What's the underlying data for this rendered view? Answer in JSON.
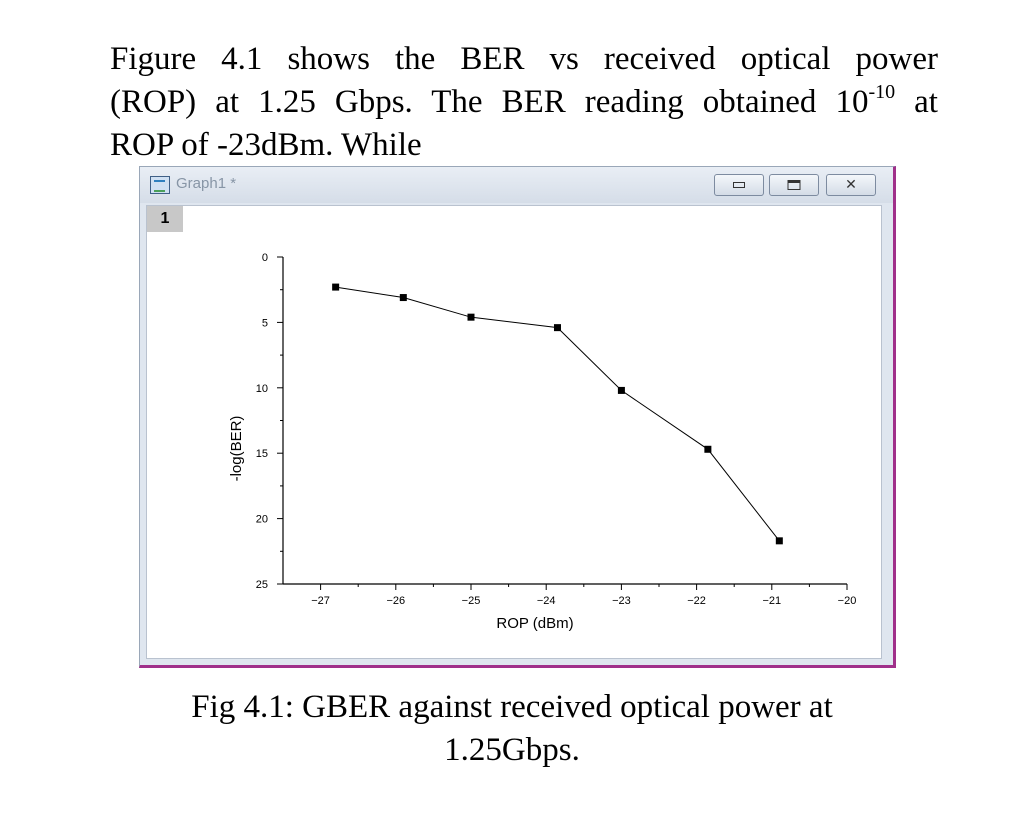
{
  "paragraph": {
    "line1": "Figure 4.1 shows the BER vs received optical power",
    "line2_text": "(ROP) at 1.25 Gbps. The BER reading obtained 10",
    "line2_sup": "-10",
    "line2_end": " at",
    "line3": "ROP of -23dBm. While"
  },
  "window": {
    "title": "Graph1 *",
    "layer_label": "1",
    "close_glyph": "✕"
  },
  "chart_data": {
    "type": "line",
    "xlabel": "ROP (dBm)",
    "ylabel": "-log(BER)",
    "xlim": [
      -27.5,
      -20
    ],
    "ylim": [
      0,
      25
    ],
    "y_inverted": true,
    "x_ticks": [
      -27,
      -26,
      -25,
      -24,
      -23,
      -22,
      -21,
      -20
    ],
    "x_tick_labels": [
      "−27",
      "−26",
      "−25",
      "−24",
      "−23",
      "−22",
      "−21",
      "−20"
    ],
    "y_ticks": [
      0,
      5,
      10,
      15,
      20,
      25
    ],
    "y_tick_labels": [
      "0",
      "5",
      "10",
      "15",
      "20",
      "25"
    ],
    "series": [
      {
        "x": [
          -26.8,
          -25.9,
          -25.0,
          -23.85,
          -23.0,
          -21.85,
          -20.9
        ],
        "y": [
          2.3,
          3.1,
          4.6,
          5.4,
          10.2,
          14.7,
          21.7
        ],
        "color": "#000000",
        "marker": "square"
      }
    ],
    "grid": false
  },
  "caption": {
    "line1": "Fig 4.1: GBER against received optical power at",
    "line2": "1.25Gbps."
  }
}
